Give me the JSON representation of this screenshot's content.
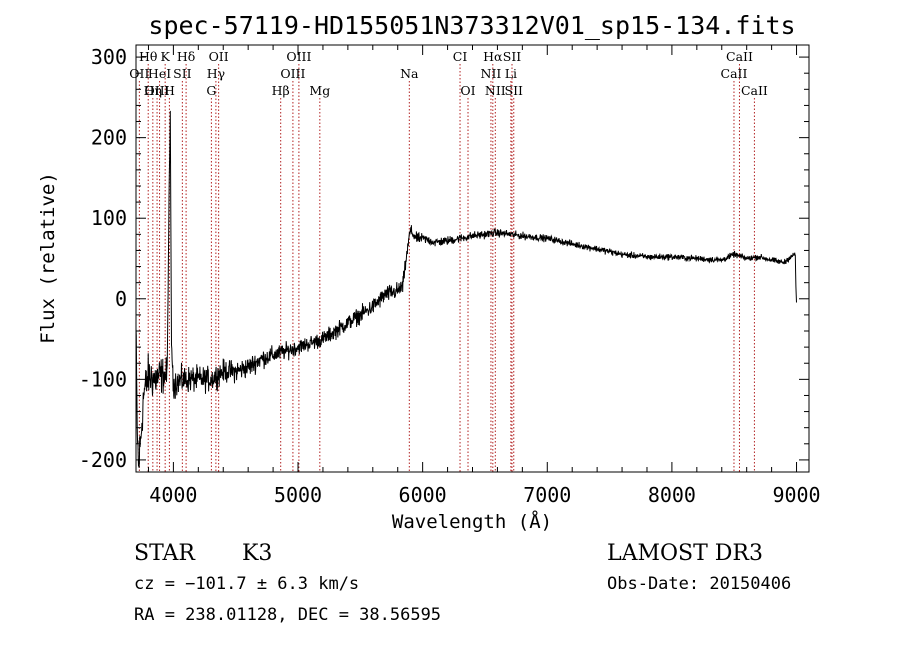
{
  "chart_data": {
    "type": "line",
    "title": "spec-57119-HD155051N373312V01_sp15-134.fits",
    "xlabel": "Wavelength (Å)",
    "ylabel": "Flux (relative)",
    "xlim": [
      3700,
      9100
    ],
    "ylim": [
      -215,
      315
    ],
    "xticks": [
      4000,
      5000,
      6000,
      7000,
      8000,
      9000
    ],
    "yticks": [
      -200,
      -100,
      0,
      100,
      200,
      300
    ],
    "spectrum_anchors": {
      "x": [
        3700,
        3710,
        3720,
        3740,
        3760,
        3800,
        3850,
        3900,
        3950,
        3965,
        3975,
        3985,
        4000,
        4100,
        4200,
        4300,
        4400,
        4500,
        4600,
        4700,
        4800,
        4900,
        5000,
        5100,
        5200,
        5300,
        5400,
        5500,
        5600,
        5700,
        5800,
        5840,
        5860,
        5900,
        5950,
        6000,
        6100,
        6200,
        6300,
        6400,
        6500,
        6600,
        6700,
        6800,
        7000,
        7200,
        7400,
        7600,
        7800,
        8000,
        8200,
        8400,
        8500,
        8600,
        8700,
        8800,
        8900,
        8950,
        8990,
        8995,
        9000
      ],
      "y": [
        -40,
        -160,
        -210,
        -170,
        -120,
        -95,
        -100,
        -95,
        -95,
        120,
        230,
        -60,
        -105,
        -100,
        -100,
        -100,
        -90,
        -90,
        -85,
        -75,
        -70,
        -65,
        -60,
        -55,
        -50,
        -40,
        -30,
        -20,
        -10,
        5,
        10,
        15,
        40,
        85,
        75,
        75,
        70,
        72,
        75,
        78,
        80,
        82,
        80,
        78,
        75,
        68,
        62,
        55,
        52,
        52,
        50,
        48,
        55,
        50,
        52,
        48,
        45,
        52,
        55,
        15,
        -5
      ],
      "noise_amplitude": {
        "x": [
          3700,
          3900,
          4000,
          4400,
          5000,
          5800,
          6000,
          7000,
          9000
        ],
        "amp": [
          25,
          20,
          15,
          12,
          8,
          9,
          5,
          3.5,
          3
        ]
      }
    },
    "emission_lines": [
      {
        "name": "Hθ",
        "wavelength": 3798,
        "label_row": 0
      },
      {
        "name": "K",
        "wavelength": 3934,
        "label_row": 0
      },
      {
        "name": "Hδ",
        "wavelength": 4102,
        "label_row": 0
      },
      {
        "name": "OII",
        "wavelength": 4363,
        "label_row": 0
      },
      {
        "name": "OIII",
        "wavelength": 5007,
        "label_row": 0
      },
      {
        "name": "CI",
        "wavelength": 6300,
        "label_row": 0
      },
      {
        "name": "Hα",
        "wavelength": 6563,
        "label_row": 0
      },
      {
        "name": "SII",
        "wavelength": 6717,
        "label_row": 0
      },
      {
        "name": "CaII",
        "wavelength": 8542,
        "label_row": 0
      },
      {
        "name": "OII",
        "wavelength": 3727,
        "label_row": 1
      },
      {
        "name": "HeI",
        "wavelength": 3889,
        "label_row": 1
      },
      {
        "name": "SII",
        "wavelength": 4072,
        "label_row": 1
      },
      {
        "name": "Hγ",
        "wavelength": 4341,
        "label_row": 1
      },
      {
        "name": "OIII",
        "wavelength": 4959,
        "label_row": 1
      },
      {
        "name": "Na",
        "wavelength": 5893,
        "label_row": 1
      },
      {
        "name": "NII",
        "wavelength": 6548,
        "label_row": 1
      },
      {
        "name": "Li",
        "wavelength": 6708,
        "label_row": 1
      },
      {
        "name": "CaII",
        "wavelength": 8498,
        "label_row": 1
      },
      {
        "name": "OIII",
        "wavelength": 3869,
        "label_row": 2
      },
      {
        "name": "Hη",
        "wavelength": 3835,
        "label_row": 2
      },
      {
        "name": "H",
        "wavelength": 3968,
        "label_row": 2
      },
      {
        "name": "G",
        "wavelength": 4305,
        "label_row": 2
      },
      {
        "name": "Hβ",
        "wavelength": 4861,
        "label_row": 2
      },
      {
        "name": "Mg",
        "wavelength": 5175,
        "label_row": 2
      },
      {
        "name": "OI",
        "wavelength": 6364,
        "label_row": 2
      },
      {
        "name": "NII",
        "wavelength": 6583,
        "label_row": 2
      },
      {
        "name": "SII",
        "wavelength": 6731,
        "label_row": 2
      },
      {
        "name": "CaII",
        "wavelength": 8662,
        "label_row": 2
      }
    ],
    "line_color": "#000000",
    "marker_color": "#b22222",
    "grid": false,
    "legend": "none"
  },
  "info": {
    "object_class": "STAR",
    "subclass": "K3",
    "survey": "LAMOST DR3",
    "redshift": "cz = −101.7 ± 6.3 km/s",
    "obs_date": "Obs-Date: 20150406",
    "coords": "RA = 238.01128, DEC =  38.56595"
  }
}
